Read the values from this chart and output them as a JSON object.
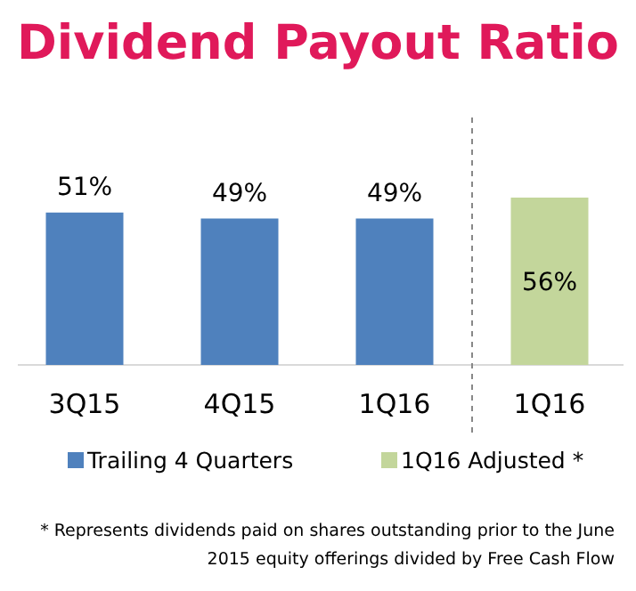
{
  "chart_data": {
    "type": "bar",
    "title": "Dividend Payout Ratio",
    "categories": [
      "3Q15",
      "4Q15",
      "1Q16",
      "1Q16"
    ],
    "series": [
      {
        "name": "Trailing 4 Quarters",
        "color": "#4f81bd",
        "values": [
          51,
          49,
          49,
          null
        ],
        "value_labels": [
          "51%",
          "49%",
          "49%",
          null
        ]
      },
      {
        "name": "1Q16 Adjusted *",
        "color": "#c3d69b",
        "values": [
          null,
          null,
          null,
          56
        ],
        "value_labels": [
          null,
          null,
          null,
          "56%"
        ]
      }
    ],
    "legend": "bottom",
    "annotations": [
      "* Represents dividends paid on shares outstanding prior to the June 2015 equity offerings divided by Free Cash Flow"
    ]
  }
}
